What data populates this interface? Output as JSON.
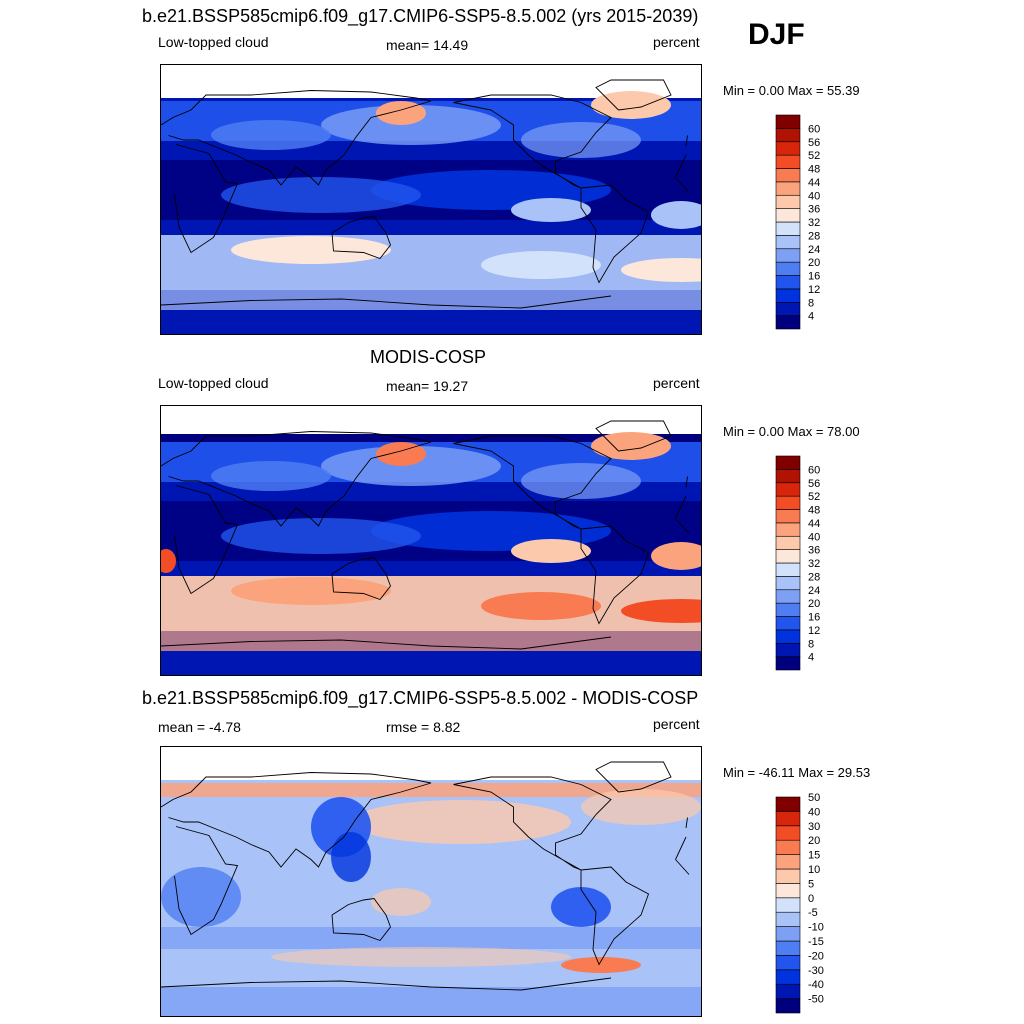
{
  "season": "DJF",
  "colors": {
    "model_palette": [
      "#00007f",
      "#0016b3",
      "#0033dd",
      "#2255ee",
      "#4f7ef2",
      "#7da0f5",
      "#a9c2f8",
      "#d2e2fb",
      "#fde7da",
      "#fcc9ad",
      "#fba37d",
      "#f97b51",
      "#f34d25",
      "#d7260c",
      "#b01203",
      "#800000"
    ],
    "diff_palette": [
      "#00007f",
      "#0016b3",
      "#0033dd",
      "#2255ee",
      "#4f7ef2",
      "#7da0f5",
      "#a9c2f8",
      "#d2e2fb",
      "#fde7da",
      "#fcc9ad",
      "#fba37d",
      "#f97b51",
      "#f34d25",
      "#d7260c",
      "#800000"
    ]
  },
  "chart_data": [
    {
      "type": "heatmap",
      "title": "b.e21.BSSP585cmip6.f09_g17.CMIP6-SSP5-8.5.002 (yrs 2015-2039)",
      "left_label": "Low-topped cloud",
      "center_label": "mean=  14.49",
      "right_label": "percent",
      "mean": 14.49,
      "min": 0.0,
      "max": 55.39,
      "min_max_text": "Min =   0.00 Max =  55.39",
      "units": "percent",
      "colorbar_levels": [
        4,
        8,
        12,
        16,
        20,
        24,
        28,
        32,
        36,
        40,
        44,
        48,
        52,
        56,
        60
      ],
      "colorbar_labels": [
        "4",
        "8",
        "12",
        "16",
        "20",
        "24",
        "28",
        "32",
        "36",
        "40",
        "44",
        "48",
        "52",
        "56",
        "60"
      ]
    },
    {
      "type": "heatmap",
      "title": "MODIS-COSP",
      "left_label": "Low-topped cloud",
      "center_label": "mean=  19.27",
      "right_label": "percent",
      "mean": 19.27,
      "min": 0.0,
      "max": 78.0,
      "min_max_text": "Min =   0.00 Max =  78.00",
      "units": "percent",
      "colorbar_levels": [
        4,
        8,
        12,
        16,
        20,
        24,
        28,
        32,
        36,
        40,
        44,
        48,
        52,
        56,
        60
      ],
      "colorbar_labels": [
        "4",
        "8",
        "12",
        "16",
        "20",
        "24",
        "28",
        "32",
        "36",
        "40",
        "44",
        "48",
        "52",
        "56",
        "60"
      ]
    },
    {
      "type": "heatmap",
      "title": "b.e21.BSSP585cmip6.f09_g17.CMIP6-SSP5-8.5.002 - MODIS-COSP",
      "left_label": "mean =  -4.78",
      "center_label": "rmse =   8.82",
      "right_label": "percent",
      "mean": -4.78,
      "rmse": 8.82,
      "min": -46.11,
      "max": 29.53,
      "min_max_text": "Min = -46.11 Max =  29.53",
      "units": "percent",
      "colorbar_levels": [
        -50,
        -40,
        -30,
        -20,
        -15,
        -10,
        -5,
        0,
        5,
        10,
        15,
        20,
        30,
        40,
        50
      ],
      "colorbar_labels": [
        "-50",
        "-40",
        "-30",
        "-20",
        "-15",
        "-10",
        "-5",
        "0",
        "5",
        "10",
        "15",
        "20",
        "30",
        "40",
        "50"
      ]
    }
  ]
}
